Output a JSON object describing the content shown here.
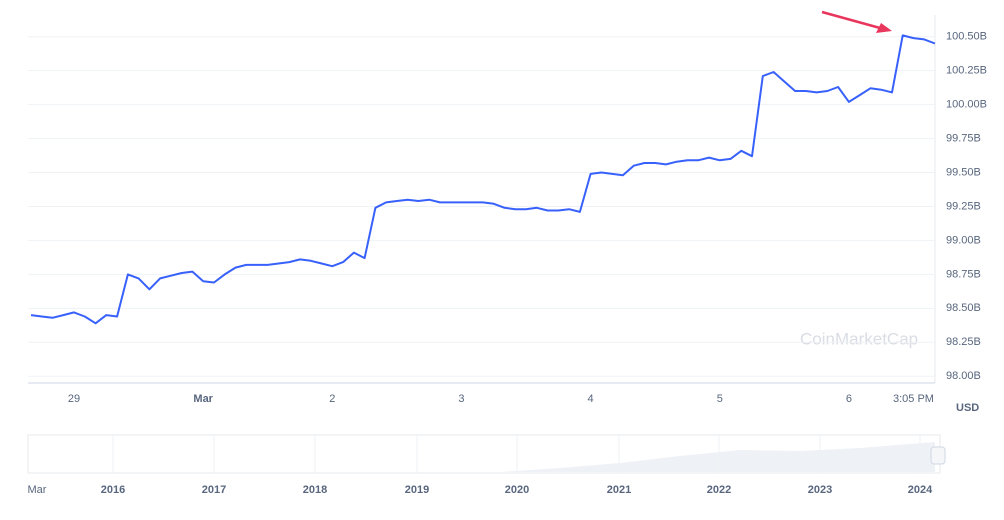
{
  "chart_data": {
    "type": "line",
    "categories": [
      null,
      null,
      null,
      null,
      "29",
      null,
      null,
      null,
      null,
      null,
      null,
      null,
      null,
      null,
      null,
      null,
      "Mar",
      null,
      null,
      null,
      null,
      null,
      null,
      null,
      null,
      null,
      null,
      null,
      "2",
      null,
      null,
      null,
      null,
      null,
      null,
      null,
      null,
      null,
      null,
      null,
      "3",
      null,
      null,
      null,
      null,
      null,
      null,
      null,
      null,
      null,
      null,
      null,
      "4",
      null,
      null,
      null,
      null,
      null,
      null,
      null,
      null,
      null,
      null,
      null,
      "5",
      null,
      null,
      null,
      null,
      null,
      null,
      null,
      null,
      null,
      null,
      null,
      "6",
      null,
      null,
      null,
      null,
      null,
      "3:05 PM",
      null,
      null
    ],
    "series": [
      {
        "color": "#3861fb",
        "values": [
          98.45,
          98.44,
          98.43,
          98.45,
          98.47,
          98.44,
          98.39,
          98.45,
          98.44,
          98.75,
          98.72,
          98.64,
          98.72,
          98.74,
          98.76,
          98.77,
          98.7,
          98.69,
          98.75,
          98.8,
          98.82,
          98.82,
          98.82,
          98.83,
          98.84,
          98.86,
          98.85,
          98.83,
          98.81,
          98.84,
          98.91,
          98.87,
          99.24,
          99.28,
          99.29,
          99.3,
          99.29,
          99.3,
          99.28,
          99.28,
          99.28,
          99.28,
          99.28,
          99.27,
          99.24,
          99.23,
          99.23,
          99.24,
          99.22,
          99.22,
          99.23,
          99.21,
          99.49,
          99.5,
          99.49,
          99.48,
          99.55,
          99.57,
          99.57,
          99.56,
          99.58,
          99.59,
          99.59,
          99.61,
          99.59,
          99.6,
          99.66,
          99.62,
          100.21,
          100.24,
          100.17,
          100.1,
          100.1,
          100.09,
          100.1,
          100.13,
          100.02,
          100.07,
          100.12,
          100.11,
          100.09,
          100.51,
          100.49,
          100.48,
          100.45
        ]
      }
    ],
    "ylim": [
      97.95,
      100.66
    ],
    "yticks": [
      {
        "value": 98.0,
        "label": "98.00B"
      },
      {
        "value": 98.25,
        "label": "98.25B"
      },
      {
        "value": 98.5,
        "label": "98.50B"
      },
      {
        "value": 98.75,
        "label": "98.75B"
      },
      {
        "value": 99.0,
        "label": "99.00B"
      },
      {
        "value": 99.25,
        "label": "99.25B"
      },
      {
        "value": 99.5,
        "label": "99.50B"
      },
      {
        "value": 99.75,
        "label": "99.75B"
      },
      {
        "value": 100.0,
        "label": "100.00B"
      },
      {
        "value": 100.25,
        "label": "100.25B"
      },
      {
        "value": 100.5,
        "label": "100.50B"
      }
    ],
    "y_axis_unit": "USD",
    "grid": true,
    "watermark": "CoinMarketCap",
    "navigator_labels": [
      "Mar",
      "2016",
      "2017",
      "2018",
      "2019",
      "2020",
      "2021",
      "2022",
      "2023",
      "2024"
    ]
  }
}
